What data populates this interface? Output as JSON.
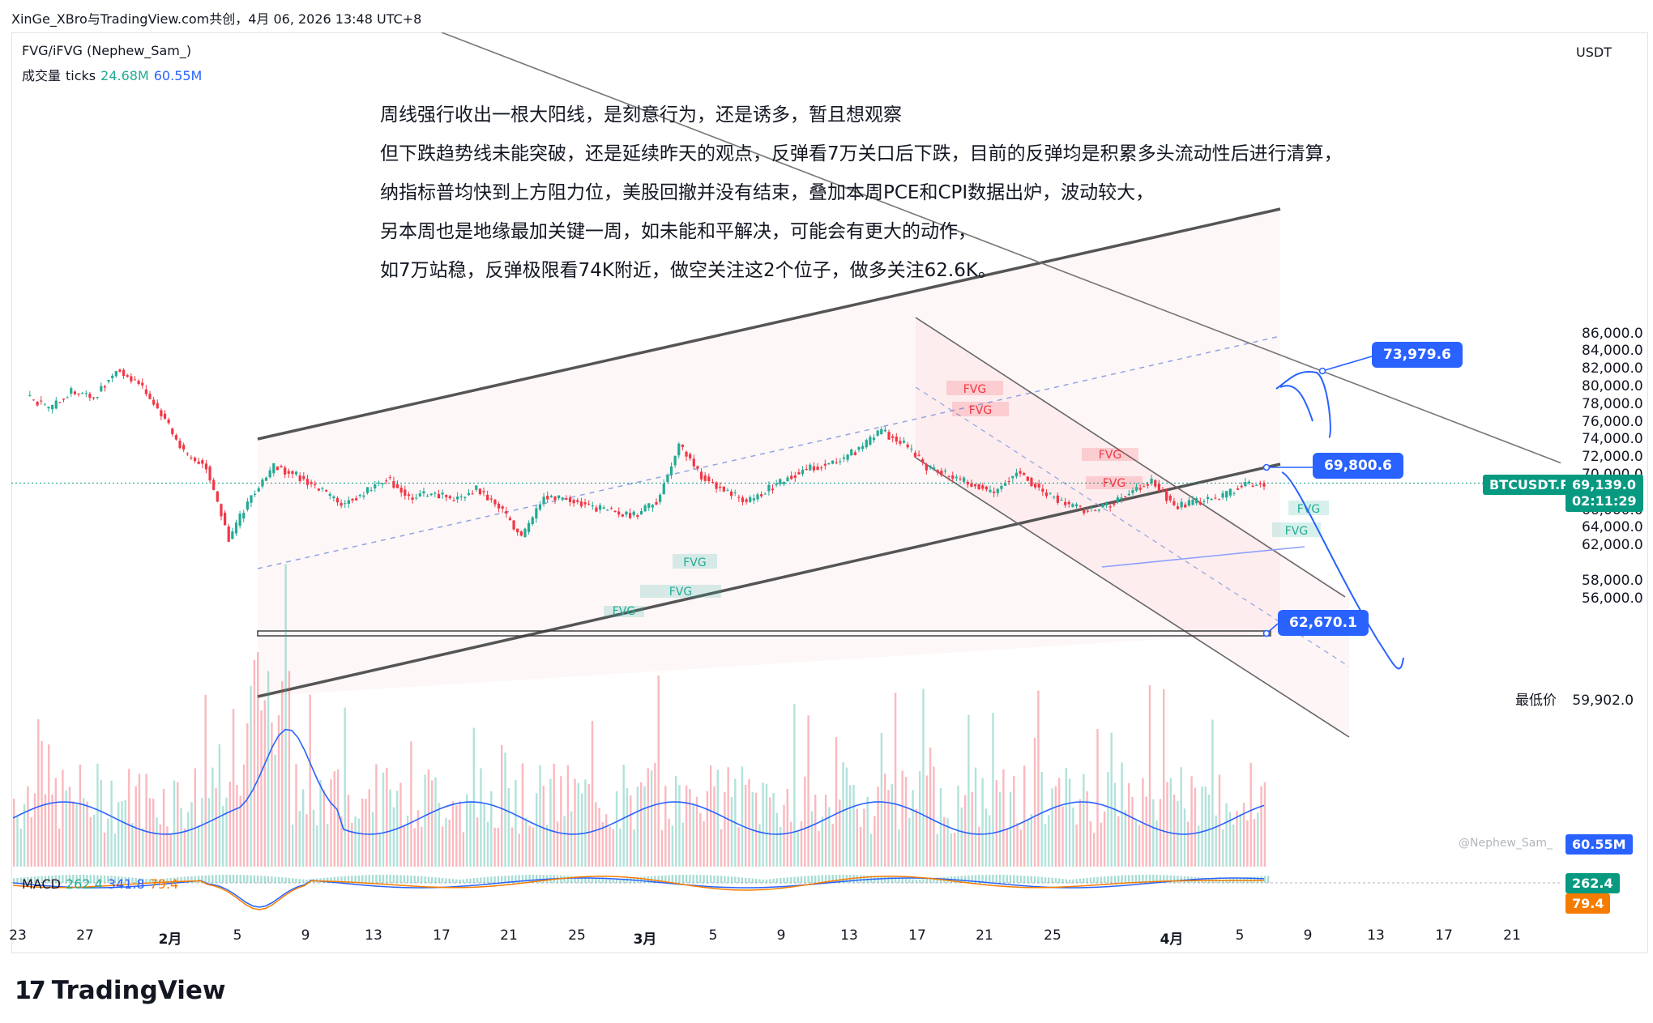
{
  "header": {
    "title": "XinGe_XBro与TradingView.com共创，4月 06, 2026 13:48 UTC+8"
  },
  "indicators": {
    "fvg": "FVG/iFVG (Nephew_Sam_)",
    "volume_label": "成交量",
    "volume_sub": "ticks",
    "volume_a": "24.68M",
    "volume_b": "60.55M",
    "macd_label": "MACD",
    "macd_a": "262.4",
    "macd_b": "341.8",
    "macd_c": "79.4"
  },
  "notes": [
    "周线强行收出一根大阳线，是刻意行为，还是诱多，暂且想观察",
    "但下跌趋势线未能突破，还是延续昨天的观点，反弹看7万关口后下跌，目前的反弹均是积累多头流动性后进行清算，",
    "纳指标普均快到上方阻力位，美股回撤并没有结束，叠加本周PCE和CPI数据出炉，波动较大，",
    "另本周也是地缘最加关键一周，如未能和平解决，可能会有更大的动作，",
    "如7万站稳，反弹极限看74K附近，做空关注这2个位子，做多关注62.6K。"
  ],
  "currency": "USDT",
  "watermark": "@Nephew_Sam_",
  "price_axis": {
    "labels": [
      "86,000.0",
      "84,000.0",
      "82,000.0",
      "80,000.0",
      "78,000.0",
      "76,000.0",
      "74,000.0",
      "72,000.0",
      "70,000.0",
      "66,000.0",
      "64,000.0",
      "62,000.0",
      "58,000.0",
      "56,000.0"
    ],
    "values": [
      86000,
      84000,
      82000,
      80000,
      78000,
      76000,
      74000,
      72000,
      70000,
      66000,
      64000,
      62000,
      58000,
      56000
    ]
  },
  "time_axis": {
    "labels": [
      "23",
      "27",
      "2月",
      "5",
      "9",
      "13",
      "17",
      "21",
      "25",
      "3月",
      "5",
      "9",
      "13",
      "17",
      "21",
      "25",
      "4月",
      "5",
      "9",
      "13",
      "17",
      "21"
    ],
    "bold": [
      false,
      false,
      true,
      false,
      false,
      false,
      false,
      false,
      false,
      true,
      false,
      false,
      false,
      false,
      false,
      false,
      true,
      false,
      false,
      false,
      false,
      false
    ]
  },
  "symbol": {
    "name": "BTCUSDT.P",
    "price": "69,139.0",
    "countdown": "02:11:29",
    "price_value": 69139
  },
  "lowest": {
    "label": "最低价",
    "price": "59,902.0",
    "value": 59902
  },
  "callouts": [
    {
      "text": "73,979.6",
      "value": 73979.6
    },
    {
      "text": "69,800.6",
      "value": 69800.6
    },
    {
      "text": "62,670.1",
      "value": 62670.1
    }
  ],
  "volume_tags": [
    "60.55M",
    "24.68M"
  ],
  "macd_tags": [
    "262.4",
    "79.4"
  ],
  "fvg_tag": "FVG",
  "brand": "TradingView",
  "colors": {
    "up": "#22ab94",
    "down": "#f23645",
    "accent": "#2962ff",
    "orange": "#f57c00",
    "symbol_bg": "#089981"
  },
  "chart_data": {
    "type": "candlestick",
    "ylim": [
      53000,
      87500
    ],
    "approx_closes": [
      77500,
      79500,
      78800,
      82000,
      80500,
      77000,
      72500,
      71000,
      62800,
      67800,
      71000,
      70000,
      68500,
      66800,
      68000,
      69800,
      67500,
      68000,
      67300,
      68500,
      66500,
      63000,
      67700,
      67500,
      66500,
      66000,
      65500,
      67000,
      73500,
      70000,
      68300,
      67000,
      68500,
      70000,
      71000,
      71500,
      73000,
      75000,
      73500,
      71000,
      70000,
      69000,
      68000,
      70500,
      68500,
      67000,
      66000,
      66500,
      68000,
      69500,
      66500,
      67000,
      67500,
      68800,
      69139
    ],
    "price_levels": [
      73979.6,
      69800.6,
      62670.1
    ],
    "lowest": 59902
  }
}
